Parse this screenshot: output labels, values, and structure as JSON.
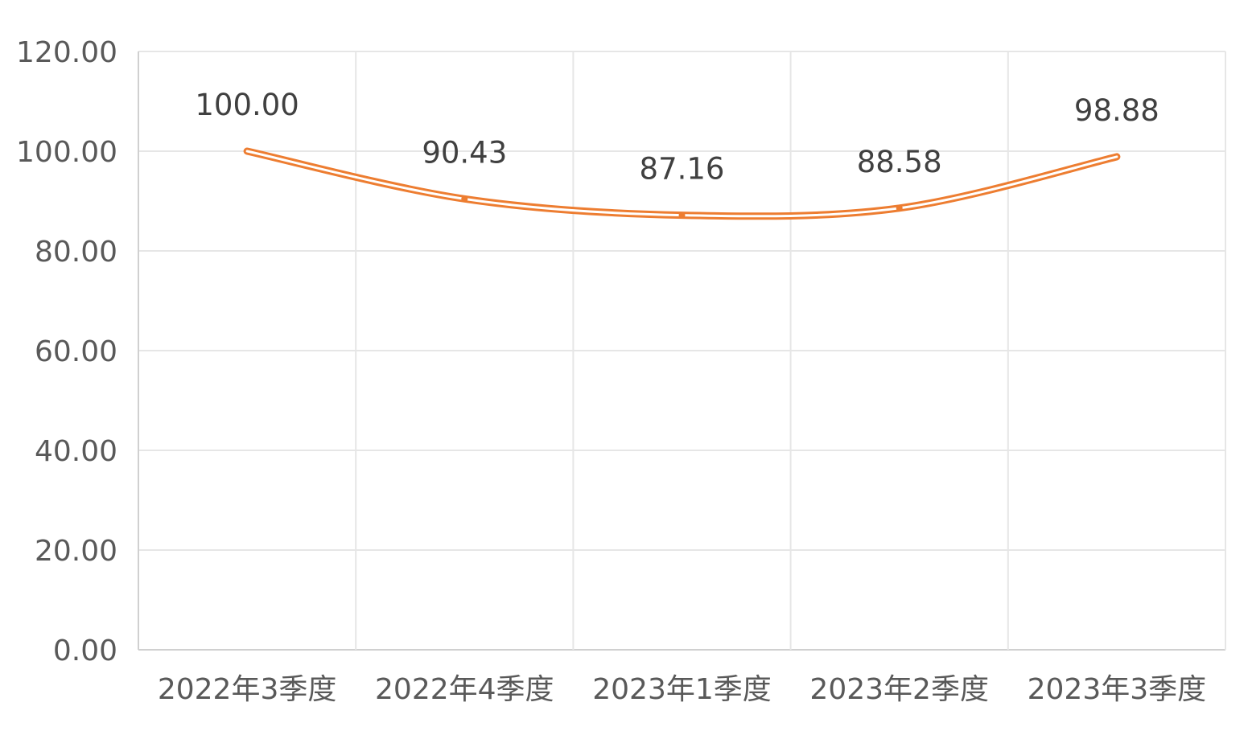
{
  "chart_data": {
    "type": "line",
    "categories": [
      "2022年3季度",
      "2022年4季度",
      "2023年1季度",
      "2023年2季度",
      "2023年3季度"
    ],
    "series": [
      {
        "values": [
          100.0,
          90.43,
          87.16,
          88.58,
          98.88
        ]
      }
    ],
    "data_labels": [
      "100.00",
      "90.43",
      "87.16",
      "88.58",
      "98.88"
    ],
    "y_ticks": [
      "0.00",
      "20.00",
      "40.00",
      "60.00",
      "80.00",
      "100.00",
      "120.00"
    ],
    "ylim": [
      0,
      120
    ],
    "y_tick_step": 20,
    "smooth": true,
    "grid": true,
    "legend": "none",
    "title": "",
    "xlabel": "",
    "ylabel": "",
    "colors": {
      "line": "#ed7d31",
      "line_inner": "#ffffff",
      "grid": "#e6e6e6",
      "text": "#595959"
    }
  }
}
